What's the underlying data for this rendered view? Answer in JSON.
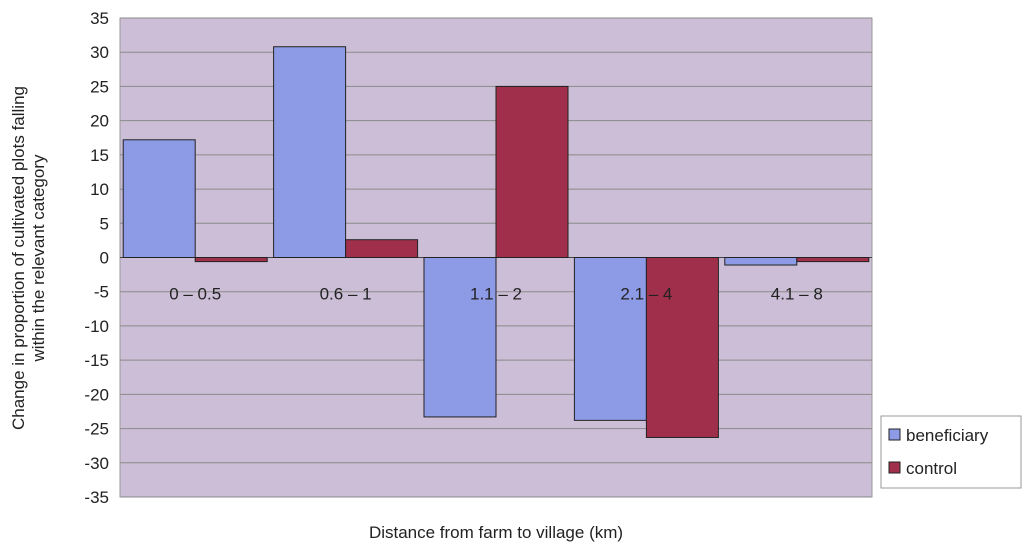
{
  "chart_data": {
    "type": "bar",
    "title": "",
    "xlabel": "Distance from farm to village (km)",
    "ylabel_lines": [
      "Change in proportion of cultivated plots falling",
      "within the relevant category"
    ],
    "categories": [
      "0 – 0.5",
      "0.6 – 1",
      "1.1 – 2",
      "2.1 – 4",
      "4.1 – 8"
    ],
    "ylim": [
      -35,
      35
    ],
    "yticks": [
      35,
      30,
      25,
      20,
      15,
      10,
      5,
      0,
      -5,
      -10,
      -15,
      -20,
      -25,
      -30,
      -35
    ],
    "grid": true,
    "legend_position": "bottom-right",
    "series": [
      {
        "name": "beneficiary",
        "color": "#8d9be6",
        "values": [
          17.2,
          30.8,
          -23.3,
          -23.8,
          -1.1
        ]
      },
      {
        "name": "control",
        "color": "#a02f4b",
        "values": [
          -0.6,
          2.6,
          25.0,
          -26.3,
          -0.6
        ]
      }
    ],
    "plot_bg": "#ccbed6"
  }
}
